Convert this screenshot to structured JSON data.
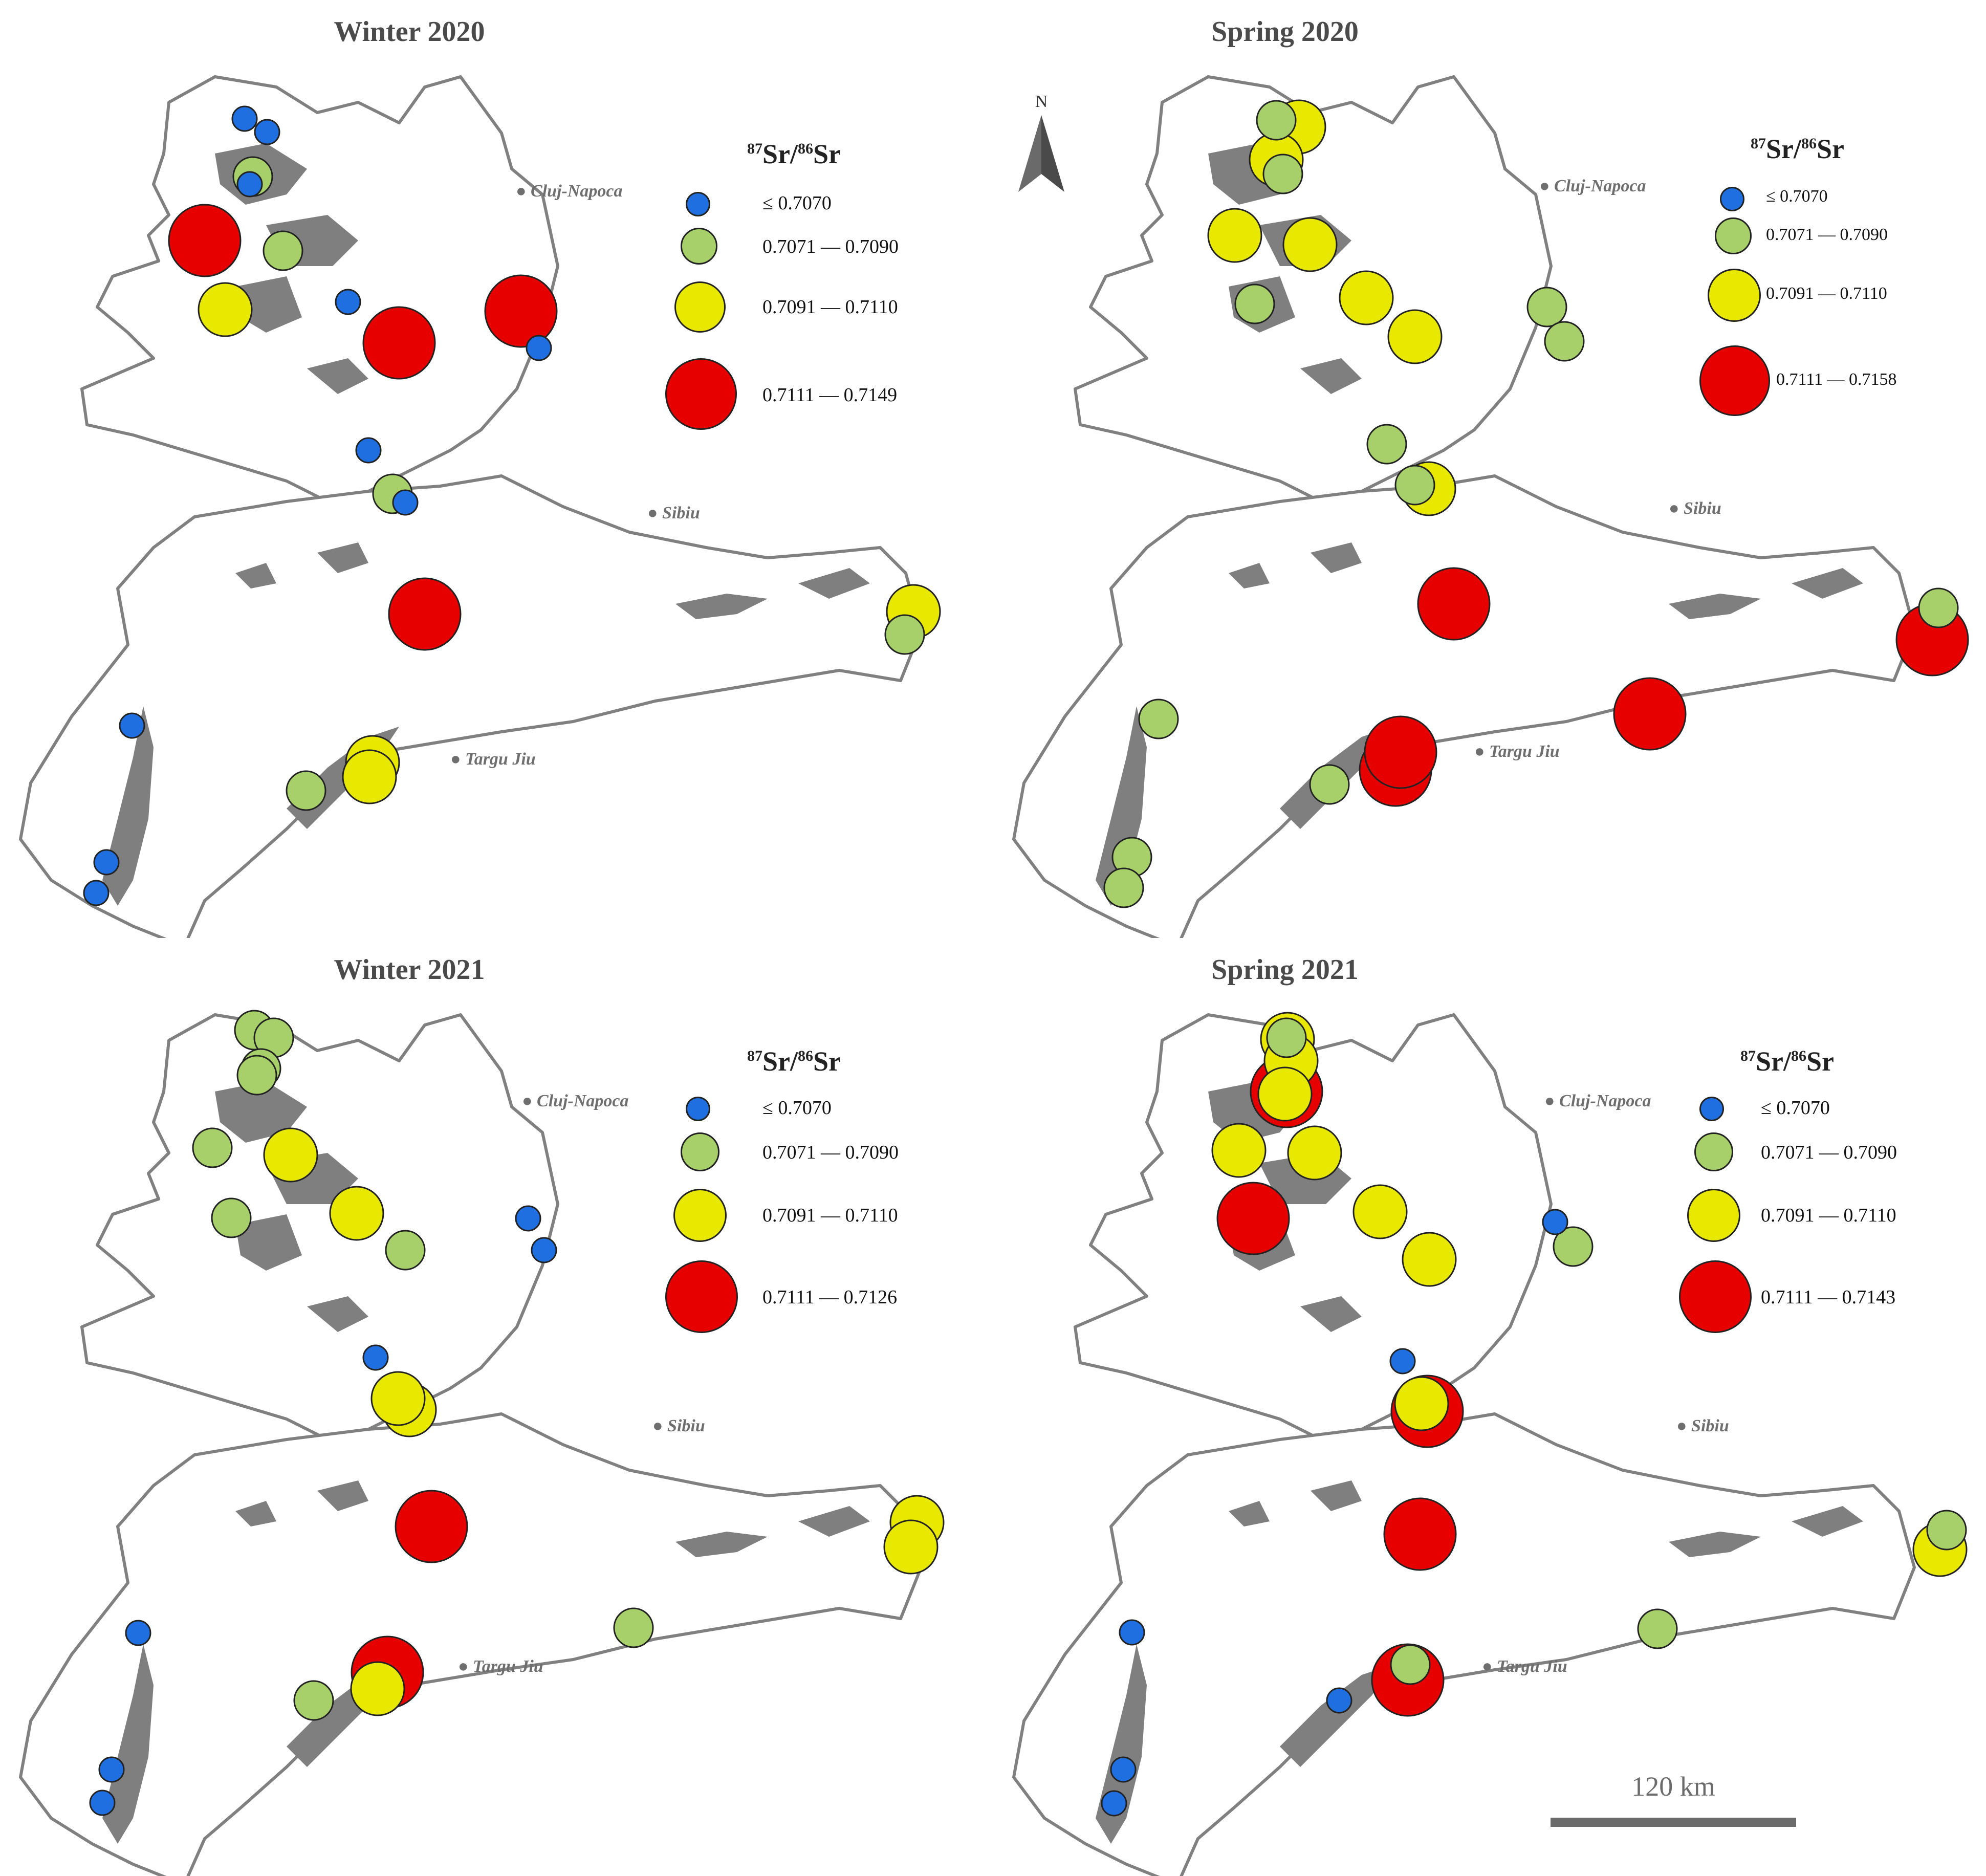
{
  "panels": [
    {
      "id": "w20",
      "title": "Winter 2020",
      "legend": {
        "title_pre": "87",
        "title_mid": "Sr/",
        "title_sup": "86",
        "title_post": "Sr",
        "labels": [
          "≤ 0.7070",
          "0.7071 — 0.7090",
          "0.7091 — 0.7110",
          "0.7111 — 0.7149"
        ]
      },
      "cities": [
        "Cluj-Napoca",
        "Sibiu",
        "Targu Jiu"
      ]
    },
    {
      "id": "s20",
      "title": "Spring 2020",
      "legend": {
        "title_pre": "87",
        "title_mid": "Sr/",
        "title_sup": "86",
        "title_post": "Sr",
        "labels": [
          "≤ 0.7070",
          "0.7071 — 0.7090",
          "0.7091 — 0.7110",
          "0.7111 — 0.7158"
        ]
      },
      "cities": [
        "Cluj-Napoca",
        "Sibiu",
        "Targu Jiu"
      ]
    },
    {
      "id": "w21",
      "title": "Winter 2021",
      "legend": {
        "title_pre": "87",
        "title_mid": "Sr/",
        "title_sup": "86",
        "title_post": "Sr",
        "labels": [
          "≤ 0.7070",
          "0.7071 — 0.7090",
          "0.7091 — 0.7110",
          "0.7111 — 0.7126"
        ]
      },
      "cities": [
        "Cluj-Napoca",
        "Sibiu",
        "Targu Jiu"
      ]
    },
    {
      "id": "s21",
      "title": "Spring 2021",
      "legend": {
        "title_pre": "87",
        "title_mid": "Sr/",
        "title_sup": "86",
        "title_post": "Sr",
        "labels": [
          "≤ 0.7070",
          "0.7071 — 0.7090",
          "0.7091 — 0.7110",
          "0.7111 — 0.7143"
        ]
      },
      "cities": [
        "Cluj-Napoca",
        "Sibiu",
        "Targu Jiu"
      ]
    }
  ],
  "north_label": "N",
  "scale_label": "120 km",
  "class_colors": {
    "c1": "#1f6fe0",
    "c2": "#a7cf6a",
    "c3": "#e8e800",
    "c4": "#e60000"
  },
  "land_color": "#ffffff",
  "outline_color": "#808080",
  "karst_color": "#7f7f7f"
}
